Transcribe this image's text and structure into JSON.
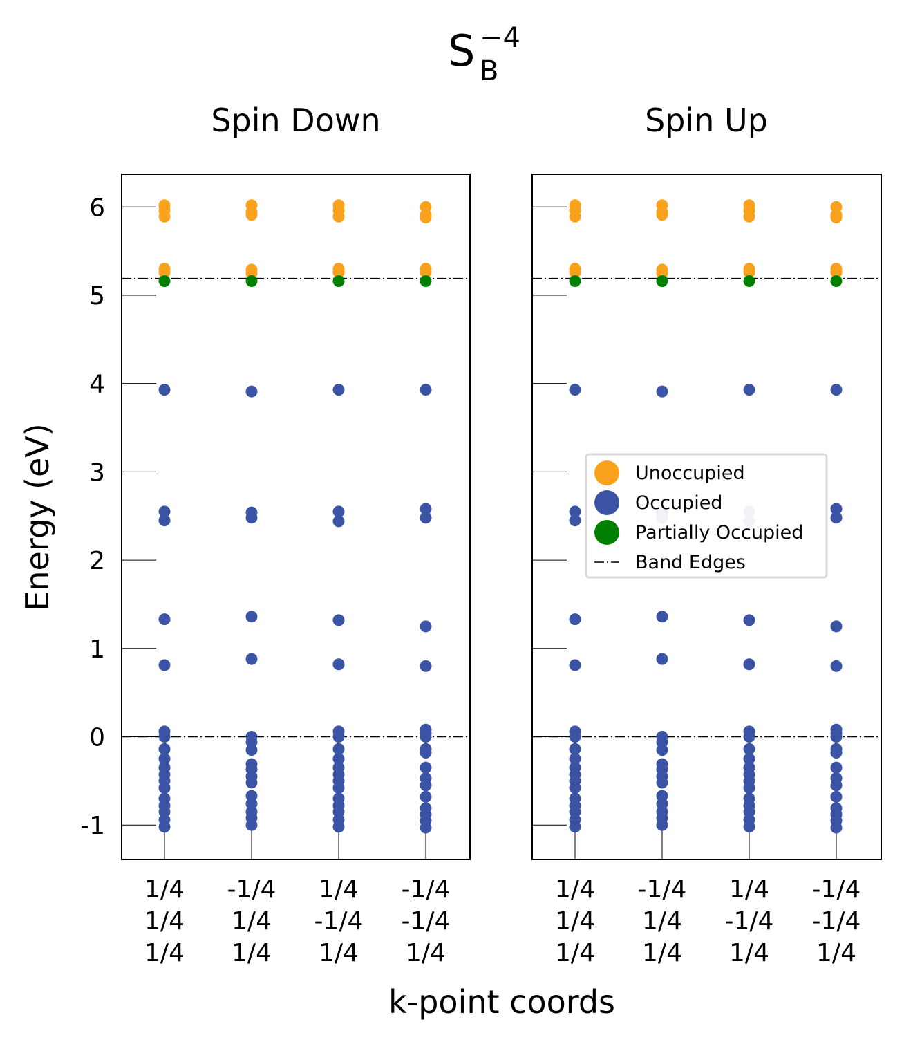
{
  "chart_data": {
    "type": "scatter",
    "title": {
      "base": "S",
      "subscript": "B",
      "superscript": "−4"
    },
    "ylabel": "Energy (eV)",
    "xlabel": "k-point coords",
    "ylim": [
      -1.39,
      6.37
    ],
    "yticks": [
      "-1",
      "0",
      "1",
      "2",
      "3",
      "4",
      "5",
      "6"
    ],
    "ytick_values": [
      -1,
      0,
      1,
      2,
      3,
      4,
      5,
      6
    ],
    "band_edges": [
      0.0,
      5.19
    ],
    "kpoints": [
      {
        "lines": [
          "1/4",
          "1/4",
          "1/4"
        ]
      },
      {
        "lines": [
          "-1/4",
          "1/4",
          "1/4"
        ]
      },
      {
        "lines": [
          "1/4",
          "-1/4",
          "1/4"
        ]
      },
      {
        "lines": [
          "-1/4",
          "-1/4",
          "1/4"
        ]
      }
    ],
    "colors": {
      "unoccupied": "#f9a11b",
      "occupied": "#3a53a4",
      "partial": "#008000",
      "faded": "#9ba8cf"
    },
    "panels": [
      {
        "title": "Spin Down",
        "kpoints": [
          {
            "occupied": [
              -1.02,
              -0.94,
              -0.85,
              -0.78,
              -0.7,
              -0.58,
              -0.5,
              -0.43,
              -0.35,
              -0.25,
              -0.14,
              0.0,
              0.06,
              0.81,
              1.33,
              2.45,
              2.55,
              3.93
            ],
            "partial": [
              5.16
            ],
            "unoccupied": [
              5.26,
              5.3,
              5.89,
              5.96,
              6.02
            ]
          },
          {
            "occupied": [
              -1.0,
              -0.92,
              -0.85,
              -0.76,
              -0.67,
              -0.52,
              -0.45,
              -0.37,
              -0.31,
              -0.15,
              -0.06,
              0.0,
              0.88,
              1.36,
              2.48,
              2.54,
              3.91
            ],
            "partial": [
              5.16
            ],
            "unoccupied": [
              5.25,
              5.29,
              5.91,
              5.94,
              6.02
            ]
          },
          {
            "occupied": [
              -1.02,
              -0.94,
              -0.85,
              -0.78,
              -0.7,
              -0.58,
              -0.5,
              -0.43,
              -0.35,
              -0.25,
              -0.14,
              0.0,
              0.06,
              0.82,
              1.32,
              2.44,
              2.55,
              3.93
            ],
            "partial": [
              5.16
            ],
            "unoccupied": [
              5.26,
              5.3,
              5.89,
              5.96,
              6.02
            ]
          },
          {
            "occupied": [
              -1.03,
              -0.95,
              -0.88,
              -0.81,
              -0.68,
              -0.55,
              -0.47,
              -0.35,
              -0.18,
              -0.14,
              0.0,
              0.04,
              0.08,
              0.8,
              1.25,
              2.48,
              2.58,
              3.93
            ],
            "partial": [
              5.16
            ],
            "unoccupied": [
              5.26,
              5.3,
              5.88,
              5.91,
              6.0
            ]
          }
        ]
      },
      {
        "title": "Spin Up",
        "kpoints": [
          {
            "occupied": [
              -1.02,
              -0.94,
              -0.85,
              -0.78,
              -0.7,
              -0.58,
              -0.5,
              -0.43,
              -0.35,
              -0.25,
              -0.14,
              0.0,
              0.06,
              0.81,
              1.33,
              2.45,
              2.55,
              3.93
            ],
            "faded": [],
            "partial": [
              5.16
            ],
            "unoccupied": [
              5.26,
              5.3,
              5.89,
              5.96,
              6.02
            ]
          },
          {
            "occupied": [
              -1.0,
              -0.92,
              -0.85,
              -0.76,
              -0.67,
              -0.52,
              -0.45,
              -0.37,
              -0.31,
              -0.15,
              -0.06,
              0.0,
              0.88,
              1.36,
              3.91
            ],
            "faded": [
              2.48,
              2.54
            ],
            "partial": [
              5.16
            ],
            "unoccupied": [
              5.25,
              5.29,
              5.91,
              5.94,
              6.02
            ]
          },
          {
            "occupied": [
              -1.02,
              -0.94,
              -0.85,
              -0.78,
              -0.7,
              -0.58,
              -0.5,
              -0.43,
              -0.35,
              -0.25,
              -0.14,
              0.0,
              0.06,
              0.82,
              1.32,
              3.93
            ],
            "faded": [
              2.44,
              2.55
            ],
            "partial": [
              5.16
            ],
            "unoccupied": [
              5.26,
              5.3,
              5.89,
              5.96,
              6.02
            ]
          },
          {
            "occupied": [
              -1.03,
              -0.95,
              -0.88,
              -0.81,
              -0.68,
              -0.55,
              -0.47,
              -0.35,
              -0.18,
              -0.14,
              0.0,
              0.04,
              0.08,
              0.8,
              1.25,
              2.48,
              2.58,
              3.93
            ],
            "faded": [],
            "partial": [
              5.16
            ],
            "unoccupied": [
              5.26,
              5.3,
              5.88,
              5.91,
              6.0
            ]
          }
        ]
      }
    ],
    "legend": {
      "position": "center-right of Spin Up panel",
      "entries": [
        {
          "label": "Unoccupied",
          "kind": "unoccupied"
        },
        {
          "label": "Occupied",
          "kind": "occupied"
        },
        {
          "label": "Partially Occupied",
          "kind": "partial"
        },
        {
          "label": "Band Edges",
          "kind": "line"
        }
      ]
    }
  }
}
